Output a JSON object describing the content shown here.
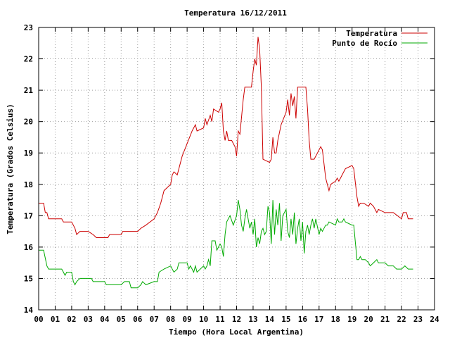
{
  "chart_data": {
    "type": "line",
    "title": "Temperatura 16/12/2011",
    "xlabel": "Tiempo (Hora Local Argentina)",
    "ylabel": "Temperatura (Grados Celsius)",
    "xlim": [
      0,
      24
    ],
    "ylim": [
      14,
      23
    ],
    "x_ticks": [
      "00",
      "01",
      "02",
      "03",
      "04",
      "05",
      "06",
      "07",
      "08",
      "09",
      "10",
      "11",
      "12",
      "13",
      "14",
      "15",
      "16",
      "17",
      "18",
      "19",
      "20",
      "21",
      "22",
      "23",
      "24"
    ],
    "y_ticks": [
      14,
      15,
      16,
      17,
      18,
      19,
      20,
      21,
      22,
      23
    ],
    "grid": true,
    "legend_position": "top-right",
    "series": [
      {
        "name": "Temperatura",
        "color": "#cc0000",
        "points": [
          [
            0.0,
            17.4
          ],
          [
            0.3,
            17.4
          ],
          [
            0.4,
            17.1
          ],
          [
            0.5,
            17.1
          ],
          [
            0.6,
            16.9
          ],
          [
            1.0,
            16.9
          ],
          [
            1.4,
            16.9
          ],
          [
            1.5,
            16.8
          ],
          [
            2.0,
            16.8
          ],
          [
            2.2,
            16.6
          ],
          [
            2.3,
            16.4
          ],
          [
            2.5,
            16.5
          ],
          [
            3.0,
            16.5
          ],
          [
            3.3,
            16.4
          ],
          [
            3.5,
            16.3
          ],
          [
            4.0,
            16.3
          ],
          [
            4.2,
            16.3
          ],
          [
            4.3,
            16.4
          ],
          [
            5.0,
            16.4
          ],
          [
            5.1,
            16.5
          ],
          [
            5.5,
            16.5
          ],
          [
            6.0,
            16.5
          ],
          [
            6.2,
            16.6
          ],
          [
            6.5,
            16.7
          ],
          [
            7.0,
            16.9
          ],
          [
            7.2,
            17.1
          ],
          [
            7.4,
            17.4
          ],
          [
            7.6,
            17.8
          ],
          [
            8.0,
            18.0
          ],
          [
            8.1,
            18.3
          ],
          [
            8.2,
            18.4
          ],
          [
            8.4,
            18.3
          ],
          [
            8.7,
            18.9
          ],
          [
            9.0,
            19.3
          ],
          [
            9.3,
            19.7
          ],
          [
            9.5,
            19.9
          ],
          [
            9.6,
            19.7
          ],
          [
            10.0,
            19.8
          ],
          [
            10.1,
            20.1
          ],
          [
            10.2,
            19.9
          ],
          [
            10.4,
            20.2
          ],
          [
            10.5,
            20.0
          ],
          [
            10.6,
            20.4
          ],
          [
            10.9,
            20.3
          ],
          [
            11.0,
            20.4
          ],
          [
            11.1,
            20.6
          ],
          [
            11.2,
            19.7
          ],
          [
            11.3,
            19.4
          ],
          [
            11.4,
            19.7
          ],
          [
            11.5,
            19.4
          ],
          [
            11.7,
            19.4
          ],
          [
            11.8,
            19.3
          ],
          [
            11.9,
            19.2
          ],
          [
            12.0,
            18.9
          ],
          [
            12.1,
            19.7
          ],
          [
            12.2,
            19.6
          ],
          [
            12.4,
            20.7
          ],
          [
            12.5,
            21.1
          ],
          [
            12.9,
            21.1
          ],
          [
            13.0,
            21.6
          ],
          [
            13.1,
            22.0
          ],
          [
            13.2,
            21.8
          ],
          [
            13.3,
            22.7
          ],
          [
            13.4,
            22.3
          ],
          [
            13.5,
            21.1
          ],
          [
            13.6,
            18.8
          ],
          [
            14.0,
            18.7
          ],
          [
            14.1,
            18.8
          ],
          [
            14.2,
            19.5
          ],
          [
            14.3,
            19.0
          ],
          [
            14.4,
            19.0
          ],
          [
            14.5,
            19.4
          ],
          [
            14.7,
            19.9
          ],
          [
            15.0,
            20.3
          ],
          [
            15.1,
            20.7
          ],
          [
            15.2,
            20.2
          ],
          [
            15.3,
            20.9
          ],
          [
            15.4,
            20.5
          ],
          [
            15.5,
            20.8
          ],
          [
            15.6,
            20.1
          ],
          [
            15.7,
            21.1
          ],
          [
            16.0,
            21.1
          ],
          [
            16.2,
            21.1
          ],
          [
            16.3,
            20.4
          ],
          [
            16.4,
            19.4
          ],
          [
            16.5,
            18.8
          ],
          [
            16.7,
            18.8
          ],
          [
            17.0,
            19.1
          ],
          [
            17.1,
            19.2
          ],
          [
            17.2,
            19.1
          ],
          [
            17.4,
            18.2
          ],
          [
            17.5,
            18.0
          ],
          [
            17.6,
            17.8
          ],
          [
            17.7,
            18.0
          ],
          [
            18.0,
            18.1
          ],
          [
            18.1,
            18.2
          ],
          [
            18.2,
            18.1
          ],
          [
            18.3,
            18.2
          ],
          [
            18.4,
            18.3
          ],
          [
            18.6,
            18.5
          ],
          [
            19.0,
            18.6
          ],
          [
            19.1,
            18.5
          ],
          [
            19.3,
            17.6
          ],
          [
            19.4,
            17.3
          ],
          [
            19.5,
            17.4
          ],
          [
            19.7,
            17.4
          ],
          [
            20.0,
            17.3
          ],
          [
            20.1,
            17.4
          ],
          [
            20.3,
            17.3
          ],
          [
            20.4,
            17.2
          ],
          [
            20.5,
            17.1
          ],
          [
            20.6,
            17.2
          ],
          [
            21.0,
            17.1
          ],
          [
            21.5,
            17.1
          ],
          [
            22.0,
            16.9
          ],
          [
            22.1,
            17.1
          ],
          [
            22.3,
            17.1
          ],
          [
            22.4,
            16.9
          ],
          [
            22.7,
            16.9
          ]
        ]
      },
      {
        "name": "Punto de Rocío",
        "color": "#00aa00",
        "points": [
          [
            0.0,
            15.9
          ],
          [
            0.3,
            15.9
          ],
          [
            0.5,
            15.4
          ],
          [
            0.6,
            15.3
          ],
          [
            1.0,
            15.3
          ],
          [
            1.4,
            15.3
          ],
          [
            1.5,
            15.2
          ],
          [
            1.6,
            15.1
          ],
          [
            1.7,
            15.2
          ],
          [
            2.0,
            15.2
          ],
          [
            2.1,
            14.9
          ],
          [
            2.2,
            14.8
          ],
          [
            2.3,
            14.9
          ],
          [
            2.5,
            15.0
          ],
          [
            3.0,
            15.0
          ],
          [
            3.2,
            15.0
          ],
          [
            3.3,
            14.9
          ],
          [
            3.5,
            14.9
          ],
          [
            4.0,
            14.9
          ],
          [
            4.1,
            14.8
          ],
          [
            5.0,
            14.8
          ],
          [
            5.2,
            14.9
          ],
          [
            5.5,
            14.9
          ],
          [
            5.6,
            14.7
          ],
          [
            6.0,
            14.7
          ],
          [
            6.2,
            14.8
          ],
          [
            6.3,
            14.9
          ],
          [
            6.5,
            14.8
          ],
          [
            7.0,
            14.9
          ],
          [
            7.2,
            14.9
          ],
          [
            7.3,
            15.2
          ],
          [
            7.6,
            15.3
          ],
          [
            8.0,
            15.4
          ],
          [
            8.1,
            15.3
          ],
          [
            8.2,
            15.2
          ],
          [
            8.4,
            15.3
          ],
          [
            8.5,
            15.5
          ],
          [
            8.7,
            15.5
          ],
          [
            9.0,
            15.5
          ],
          [
            9.1,
            15.3
          ],
          [
            9.2,
            15.4
          ],
          [
            9.3,
            15.3
          ],
          [
            9.4,
            15.2
          ],
          [
            9.5,
            15.4
          ],
          [
            9.6,
            15.2
          ],
          [
            10.0,
            15.4
          ],
          [
            10.1,
            15.3
          ],
          [
            10.2,
            15.4
          ],
          [
            10.3,
            15.6
          ],
          [
            10.4,
            15.4
          ],
          [
            10.5,
            16.2
          ],
          [
            10.7,
            16.2
          ],
          [
            10.8,
            15.9
          ],
          [
            11.0,
            16.1
          ],
          [
            11.1,
            16.0
          ],
          [
            11.2,
            15.7
          ],
          [
            11.3,
            16.4
          ],
          [
            11.4,
            16.8
          ],
          [
            11.6,
            17.0
          ],
          [
            11.8,
            16.7
          ],
          [
            12.0,
            17.0
          ],
          [
            12.1,
            17.5
          ],
          [
            12.2,
            17.2
          ],
          [
            12.3,
            16.7
          ],
          [
            12.4,
            16.5
          ],
          [
            12.5,
            16.9
          ],
          [
            12.6,
            17.2
          ],
          [
            12.7,
            16.9
          ],
          [
            12.8,
            16.6
          ],
          [
            12.9,
            16.8
          ],
          [
            13.0,
            16.4
          ],
          [
            13.1,
            16.9
          ],
          [
            13.2,
            16.0
          ],
          [
            13.3,
            16.3
          ],
          [
            13.4,
            16.1
          ],
          [
            13.5,
            16.5
          ],
          [
            13.6,
            16.6
          ],
          [
            13.7,
            16.4
          ],
          [
            13.8,
            16.5
          ],
          [
            13.9,
            17.3
          ],
          [
            14.0,
            17.1
          ],
          [
            14.1,
            16.1
          ],
          [
            14.2,
            17.5
          ],
          [
            14.3,
            16.4
          ],
          [
            14.4,
            17.2
          ],
          [
            14.5,
            16.7
          ],
          [
            14.6,
            17.4
          ],
          [
            14.7,
            16.2
          ],
          [
            14.8,
            17.0
          ],
          [
            15.0,
            17.2
          ],
          [
            15.1,
            16.5
          ],
          [
            15.2,
            16.3
          ],
          [
            15.3,
            16.9
          ],
          [
            15.4,
            16.4
          ],
          [
            15.5,
            17.1
          ],
          [
            15.6,
            16.1
          ],
          [
            15.7,
            16.6
          ],
          [
            15.8,
            16.9
          ],
          [
            15.9,
            16.2
          ],
          [
            16.0,
            16.8
          ],
          [
            16.1,
            15.8
          ],
          [
            16.2,
            16.5
          ],
          [
            16.3,
            16.7
          ],
          [
            16.4,
            16.4
          ],
          [
            16.5,
            16.7
          ],
          [
            16.6,
            16.9
          ],
          [
            16.7,
            16.6
          ],
          [
            16.8,
            16.9
          ],
          [
            17.0,
            16.4
          ],
          [
            17.1,
            16.6
          ],
          [
            17.2,
            16.5
          ],
          [
            17.4,
            16.7
          ],
          [
            17.5,
            16.7
          ],
          [
            17.6,
            16.8
          ],
          [
            18.0,
            16.7
          ],
          [
            18.1,
            16.9
          ],
          [
            18.2,
            16.8
          ],
          [
            18.4,
            16.8
          ],
          [
            18.5,
            16.9
          ],
          [
            18.6,
            16.8
          ],
          [
            19.0,
            16.7
          ],
          [
            19.1,
            16.7
          ],
          [
            19.3,
            15.6
          ],
          [
            19.4,
            15.6
          ],
          [
            19.5,
            15.7
          ],
          [
            19.6,
            15.6
          ],
          [
            19.8,
            15.6
          ],
          [
            20.0,
            15.5
          ],
          [
            20.1,
            15.4
          ],
          [
            20.3,
            15.5
          ],
          [
            20.5,
            15.6
          ],
          [
            20.6,
            15.5
          ],
          [
            21.0,
            15.5
          ],
          [
            21.2,
            15.4
          ],
          [
            21.5,
            15.4
          ],
          [
            21.7,
            15.3
          ],
          [
            22.0,
            15.3
          ],
          [
            22.2,
            15.4
          ],
          [
            22.4,
            15.3
          ],
          [
            22.7,
            15.3
          ]
        ]
      }
    ]
  }
}
